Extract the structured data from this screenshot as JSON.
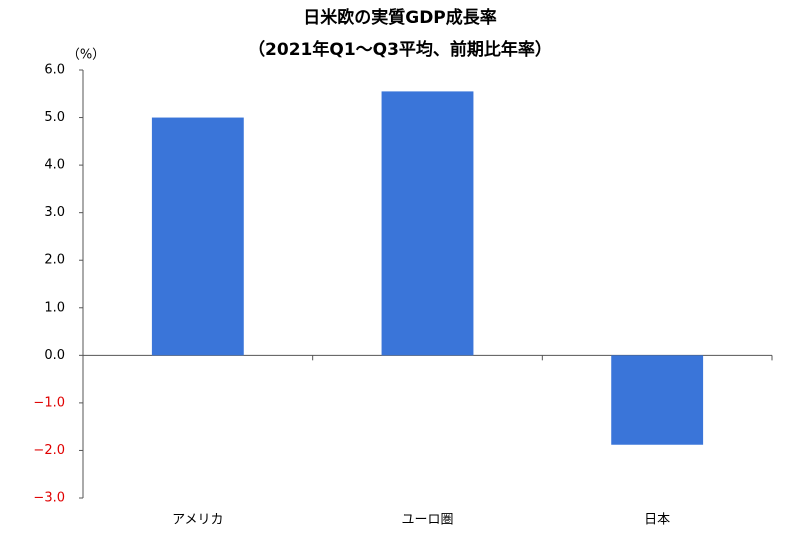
{
  "chart_data": {
    "type": "bar",
    "title": "日米欧の実質GDP成長率",
    "subtitle": "（2021年Q1～Q3平均、前期比年率）",
    "y_label": "（%）",
    "categories": [
      "アメリカ",
      "ユーロ圏",
      "日本"
    ],
    "values": [
      5.0,
      5.55,
      -1.88
    ],
    "color": "#3a75d9",
    "ylim": [
      -3,
      6
    ],
    "yticks": [
      {
        "value": -3,
        "label": "−3.0"
      },
      {
        "value": -2,
        "label": "−2.0"
      },
      {
        "value": -1,
        "label": "−1.0"
      },
      {
        "value": 0,
        "label": "0.0"
      },
      {
        "value": 1,
        "label": "1.0"
      },
      {
        "value": 2,
        "label": "2.0"
      },
      {
        "value": 3,
        "label": "3.0"
      },
      {
        "value": 4,
        "label": "4.0"
      },
      {
        "value": 5,
        "label": "5.0"
      },
      {
        "value": 6,
        "label": "6.0"
      }
    ],
    "grid": false
  }
}
